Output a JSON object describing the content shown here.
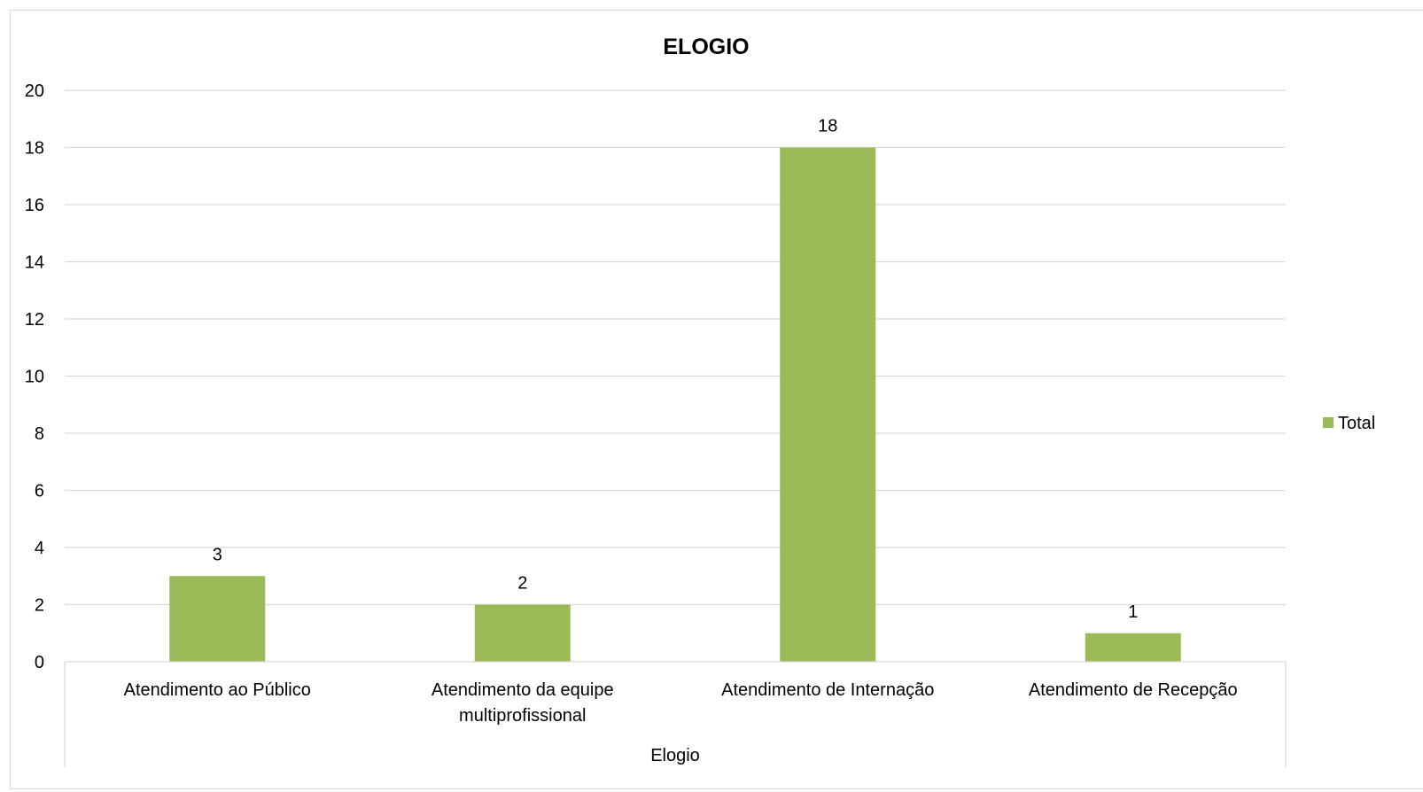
{
  "chart_data": {
    "type": "bar",
    "title": "ELOGIO",
    "categories": [
      [
        "Atendimento ao Público"
      ],
      [
        "Atendimento da equipe",
        "multiprofissional"
      ],
      [
        "Atendimento de Internação"
      ],
      [
        "Atendimento de Recepção"
      ]
    ],
    "series": [
      {
        "name": "Total",
        "values": [
          3,
          2,
          18,
          1
        ],
        "color": "#9bbb59"
      }
    ],
    "xlabel": "Elogio",
    "ylabel": "",
    "ylim": [
      0,
      20
    ],
    "yticks": [
      0,
      2,
      4,
      6,
      8,
      10,
      12,
      14,
      16,
      18,
      20
    ],
    "grid": true,
    "data_labels": true,
    "legend": {
      "position": "right",
      "entries": [
        "Total"
      ]
    }
  }
}
